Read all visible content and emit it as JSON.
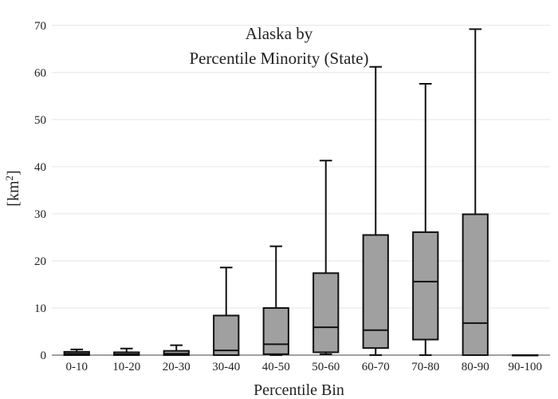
{
  "chart_data": {
    "type": "box",
    "title_line1": "Alaska  by",
    "title_line2": "Percentile Minority (State)",
    "xlabel": "Percentile Bin",
    "ylabel": "[km",
    "ylabel_sup": "2",
    "ylabel_close": "]",
    "ylim": [
      0,
      72
    ],
    "yticks": [
      0,
      10,
      20,
      30,
      40,
      50,
      60,
      70
    ],
    "ytick_labels": [
      "0",
      "10",
      "20",
      "30",
      "40",
      "50",
      "60",
      "70"
    ],
    "grid": true,
    "box_color": "#a0a0a0",
    "line_color": "#111111",
    "categories": [
      "0-10",
      "10-20",
      "20-30",
      "30-40",
      "40-50",
      "50-60",
      "60-70",
      "70-80",
      "80-90",
      "90-100"
    ],
    "boxes": [
      {
        "min": 0,
        "q1": 0,
        "median": 0.3,
        "q3": 0.7,
        "max": 1.2
      },
      {
        "min": 0,
        "q1": 0,
        "median": 0.2,
        "q3": 0.6,
        "max": 1.4
      },
      {
        "min": 0,
        "q1": 0,
        "median": 0.3,
        "q3": 0.9,
        "max": 2.1
      },
      {
        "min": 0,
        "q1": 0,
        "median": 1.0,
        "q3": 8.4,
        "max": 18.6
      },
      {
        "min": 0,
        "q1": 0.2,
        "median": 2.3,
        "q3": 10.0,
        "max": 23.1
      },
      {
        "min": 0.2,
        "q1": 0.6,
        "median": 5.9,
        "q3": 17.4,
        "max": 41.3
      },
      {
        "min": 0,
        "q1": 1.5,
        "median": 5.3,
        "q3": 25.5,
        "max": 61.2
      },
      {
        "min": 0,
        "q1": 3.3,
        "median": 15.6,
        "q3": 26.1,
        "max": 57.6
      },
      {
        "min": 0,
        "q1": 0,
        "median": 6.8,
        "q3": 29.9,
        "max": 69.2
      },
      {
        "min": 0,
        "q1": 0,
        "median": 0,
        "q3": 0,
        "max": 0
      }
    ]
  }
}
